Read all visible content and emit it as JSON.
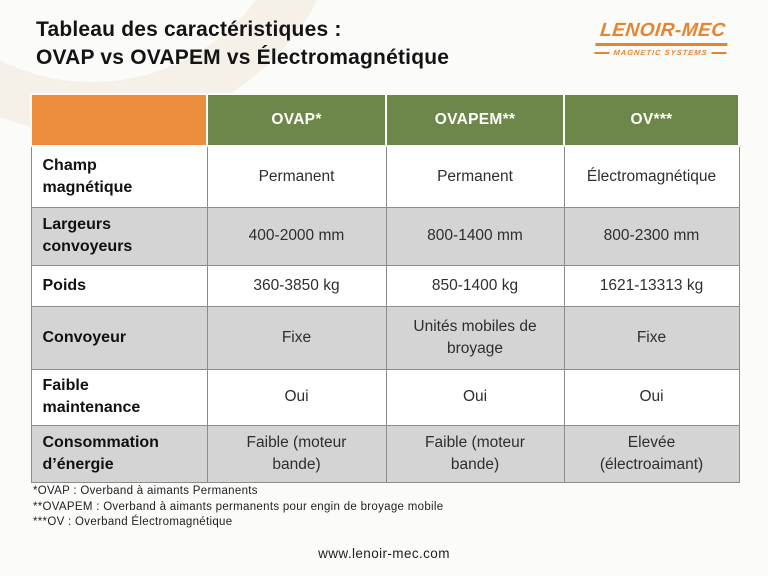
{
  "header": {
    "title_line1": "Tableau des caractéristiques :",
    "title_line2": "OVAP vs OVAPEM vs Électromagnétique"
  },
  "logo": {
    "name": "LENOIR-MEC",
    "tagline": "MAGNETIC SYSTEMS"
  },
  "colors": {
    "accent_orange": "#ED8E3E",
    "header_green": "#6C8749",
    "stripe_gray": "#D4D4D4",
    "border_gray": "#8C8C8C",
    "logo_orange": "#E8842F"
  },
  "table": {
    "column_headers": [
      "OVAP*",
      "OVAPEM**",
      "OV***"
    ],
    "rows": [
      {
        "label": "Champ\nmagnétique",
        "values": [
          "Permanent",
          "Permanent",
          "Électromagnétique"
        ]
      },
      {
        "label": "Largeurs\nconvoyeurs",
        "values": [
          "400-2000 mm",
          "800-1400 mm",
          "800-2300 mm"
        ]
      },
      {
        "label": "Poids",
        "values": [
          "360-3850 kg",
          "850-1400 kg",
          "1621-13313 kg"
        ]
      },
      {
        "label": "Convoyeur",
        "values": [
          "Fixe",
          "Unités mobiles de\nbroyage",
          "Fixe"
        ]
      },
      {
        "label": "Faible\nmaintenance",
        "values": [
          "Oui",
          "Oui",
          "Oui"
        ]
      },
      {
        "label": "Consommation\nd’énergie",
        "values": [
          "Faible (moteur\nbande)",
          "Faible (moteur\nbande)",
          "Elevée\n(électroaimant)"
        ]
      }
    ]
  },
  "footnotes": [
    "*OVAP : Overband à aimants Permanents",
    "**OVAPEM : Overband à aimants permanents pour engin de broyage mobile",
    "***OV : Overband Électromagnétique"
  ],
  "footer": {
    "url": "www.lenoir-mec.com"
  }
}
